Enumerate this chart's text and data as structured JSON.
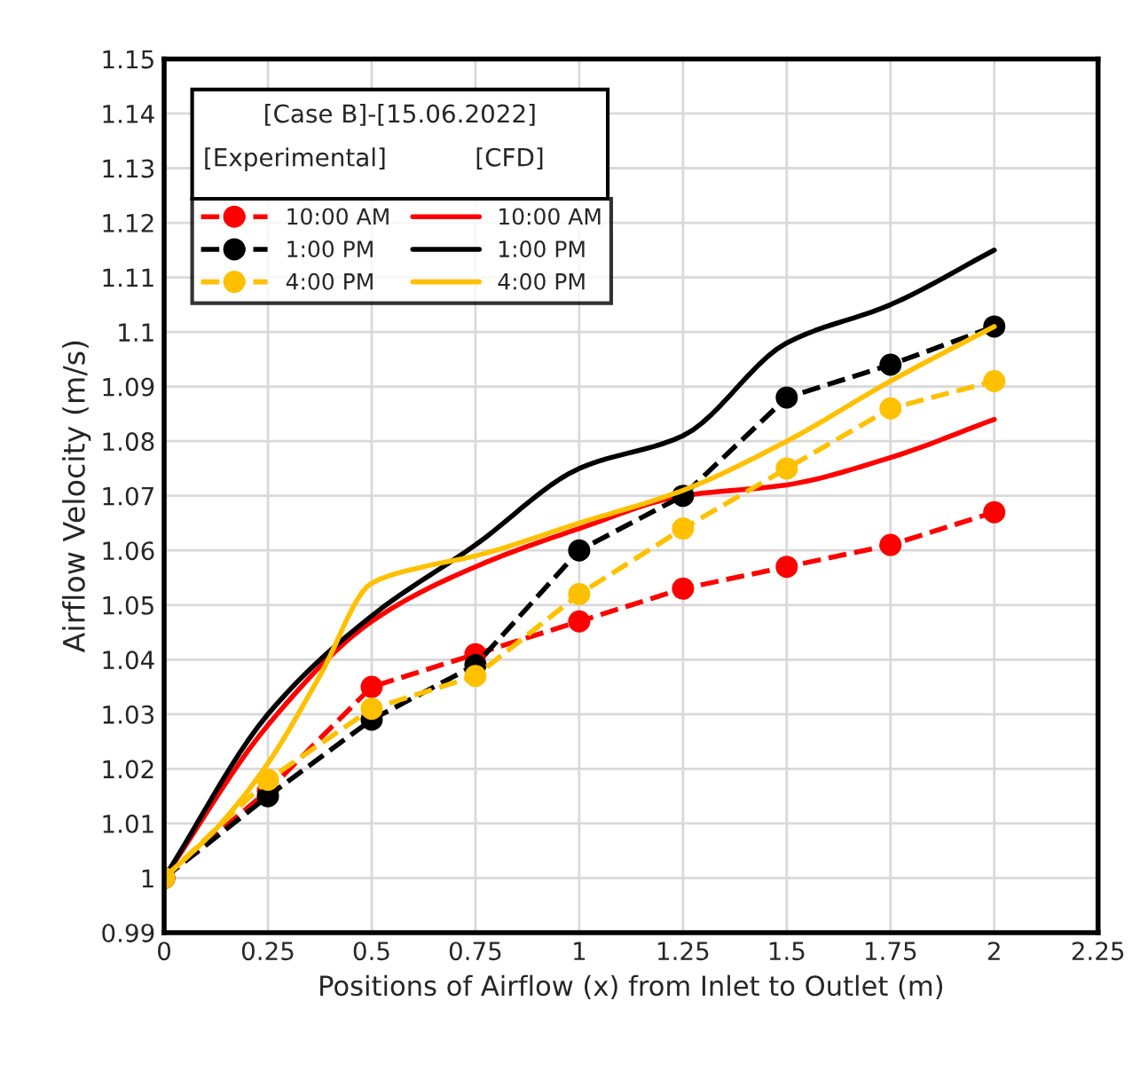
{
  "chart_data": {
    "type": "line",
    "xlabel": "Positions of Airflow (x) from Inlet to Outlet (m)",
    "ylabel": "Airflow Velocity (m/s)",
    "legend_title": "[Case B]-[15.06.2022]",
    "annotations": [
      "[Experimental]",
      "[CFD]"
    ],
    "x": [
      0,
      0.25,
      0.5,
      0.75,
      1,
      1.25,
      1.5,
      1.75,
      2
    ],
    "series": [
      {
        "name": "10:00 AM",
        "color": "#ff0000",
        "marker": "circle",
        "line_style": "dashed",
        "values": [
          1.0,
          1.016,
          1.035,
          1.041,
          1.047,
          1.053,
          1.057,
          1.061,
          1.067
        ]
      },
      {
        "name": "10:00 AM",
        "color": "#ff0000",
        "marker": "none",
        "line_style": "solid",
        "values": [
          1.0,
          1.028,
          1.047,
          1.057,
          1.064,
          1.07,
          1.072,
          1.077,
          1.084
        ]
      },
      {
        "name": "1:00 PM",
        "color": "#000000",
        "marker": "circle",
        "line_style": "dashed",
        "values": [
          1.0,
          1.015,
          1.029,
          1.039,
          1.06,
          1.07,
          1.088,
          1.094,
          1.101
        ]
      },
      {
        "name": "1:00 PM",
        "color": "#000000",
        "marker": "none",
        "line_style": "solid",
        "values": [
          1.0,
          1.03,
          1.048,
          1.061,
          1.075,
          1.081,
          1.098,
          1.105,
          1.115
        ]
      },
      {
        "name": "4:00 PM",
        "color": "#ffc000",
        "marker": "circle",
        "line_style": "dashed",
        "values": [
          1.0,
          1.018,
          1.031,
          1.037,
          1.052,
          1.064,
          1.075,
          1.086,
          1.091
        ]
      },
      {
        "name": "4:00 PM",
        "color": "#ffc000",
        "marker": "none",
        "line_style": "solid",
        "x": [
          0,
          0.125,
          0.25,
          0.375,
          0.5,
          0.625,
          0.75,
          1,
          1.25,
          1.5,
          1.75,
          2
        ],
        "values": [
          1.0,
          1.009,
          1.021,
          1.037,
          1.054,
          1.057,
          1.059,
          1.065,
          1.071,
          1.08,
          1.091,
          1.101
        ]
      }
    ],
    "xlim": [
      0,
      2.25
    ],
    "xticks": [
      0,
      0.25,
      0.5,
      0.75,
      1,
      1.25,
      1.5,
      1.75,
      2,
      2.25
    ],
    "ylim": [
      0.99,
      1.15
    ],
    "yticks": [
      0.99,
      1,
      1.01,
      1.02,
      1.03,
      1.04,
      1.05,
      1.06,
      1.07,
      1.08,
      1.09,
      1.1,
      1.11,
      1.12,
      1.13,
      1.14,
      1.15
    ],
    "grid": true,
    "legend": "top left"
  }
}
